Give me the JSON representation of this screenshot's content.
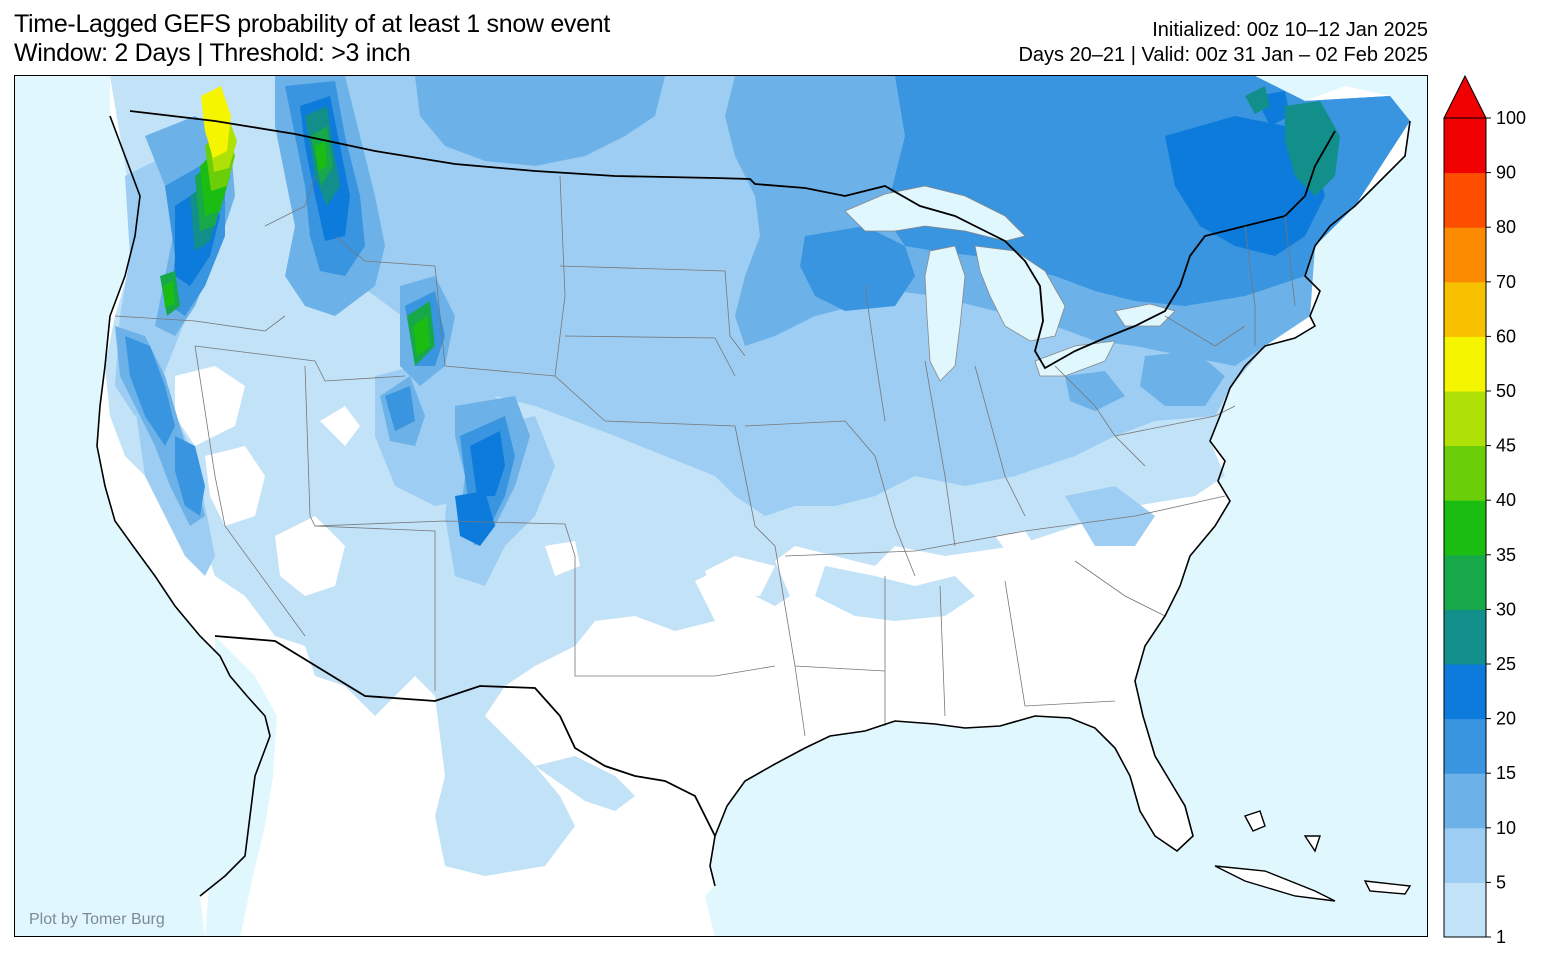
{
  "header": {
    "title_line1": "Time-Lagged GEFS probability of at least 1 snow event",
    "title_line2": "Window: 2 Days | Threshold: >3 inch",
    "init_line": "Initialized: 00z 10–12 Jan 2025",
    "valid_line": "Days 20–21 | Valid: 00z 31 Jan – 02 Feb 2025"
  },
  "credit": "Plot by Tomer Burg",
  "colors": {
    "ocean": "#e1f7fe",
    "land": "#ffffff",
    "lake": "#e1f7fe"
  },
  "colorbar": {
    "levels": [
      "1",
      "5",
      "10",
      "15",
      "20",
      "25",
      "30",
      "35",
      "40",
      "45",
      "50",
      "60",
      "70",
      "80",
      "90",
      "100"
    ],
    "colors": [
      "#c2e2f8",
      "#9dcdf2",
      "#6cb2e8",
      "#3995df",
      "#0d7bdb",
      "#128f8a",
      "#17a84a",
      "#1cbd12",
      "#6ace08",
      "#b0e106",
      "#f5f500",
      "#f8c100",
      "#fb8a00",
      "#fd4e00",
      "#f00000"
    ],
    "extend": "max"
  },
  "map": {
    "region": "Contiguous United States",
    "layers": [
      "coastline",
      "country-borders",
      "state-borders",
      "probability-contours"
    ]
  }
}
